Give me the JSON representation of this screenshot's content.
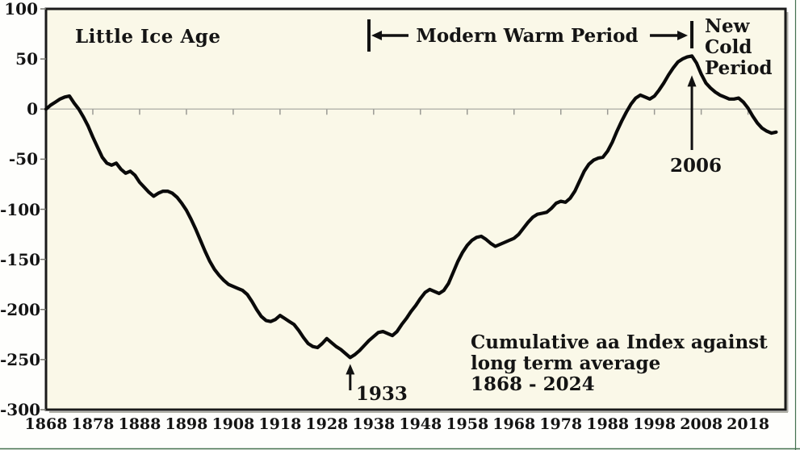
{
  "chart_data": {
    "type": "line",
    "title": "Cumulative aa Index against long term average 1868 - 2024",
    "x_start": 1868,
    "x_end": 2024,
    "ylim": [
      -300,
      100
    ],
    "y_ticks": [
      100,
      50,
      0,
      -50,
      -100,
      -150,
      -200,
      -250,
      -300
    ],
    "x_ticks": [
      1868,
      1878,
      1888,
      1898,
      1908,
      1918,
      1928,
      1938,
      1948,
      1958,
      1968,
      1978,
      1988,
      1998,
      2008,
      2018
    ],
    "grid": "zero-line-only",
    "legend": "none",
    "series": [
      {
        "name": "Cumulative aa Index against long term average",
        "x_start": 1868,
        "values": [
          0,
          4,
          7,
          10,
          12,
          13,
          6,
          0,
          -8,
          -17,
          -28,
          -38,
          -48,
          -54,
          -56,
          -54,
          -60,
          -64,
          -62,
          -66,
          -73,
          -78,
          -83,
          -87,
          -84,
          -82,
          -82,
          -84,
          -88,
          -94,
          -101,
          -110,
          -120,
          -131,
          -142,
          -152,
          -160,
          -166,
          -171,
          -175,
          -177,
          -179,
          -181,
          -185,
          -192,
          -200,
          -207,
          -211,
          -212,
          -210,
          -206,
          -209,
          -212,
          -215,
          -221,
          -228,
          -234,
          -237,
          -238,
          -234,
          -229,
          -233,
          -237,
          -240,
          -244,
          -248,
          -245,
          -241,
          -236,
          -231,
          -227,
          -223,
          -222,
          -224,
          -226,
          -222,
          -215,
          -209,
          -202,
          -196,
          -189,
          -183,
          -180,
          -182,
          -184,
          -181,
          -174,
          -163,
          -152,
          -143,
          -136,
          -131,
          -128,
          -127,
          -130,
          -134,
          -137,
          -135,
          -133,
          -131,
          -129,
          -125,
          -119,
          -113,
          -108,
          -105,
          -104,
          -103,
          -99,
          -94,
          -92,
          -93,
          -89,
          -82,
          -72,
          -62,
          -55,
          -51,
          -49,
          -48,
          -42,
          -33,
          -22,
          -12,
          -3,
          5,
          11,
          14,
          12,
          10,
          13,
          19,
          26,
          34,
          41,
          47,
          50,
          52,
          53,
          46,
          35,
          26,
          21,
          17,
          14,
          12,
          10,
          10,
          11,
          7,
          1,
          -7,
          -14,
          -19,
          -22,
          -24,
          -23
        ]
      }
    ],
    "annotations": {
      "little_ice_age": "Little Ice Age",
      "modern_warm_period": "Modern Warm Period",
      "new_cold_period": "New\nCold\nPeriod",
      "caption": "Cumulative aa Index against\nlong term average\n1868 - 2024",
      "min_point": {
        "label": "1933",
        "year": 1933,
        "value": -248
      },
      "max_point": {
        "label": "2006",
        "year": 2006,
        "value": 53
      },
      "warm_period_span": {
        "start_year": 1937,
        "end_year": 2006
      }
    },
    "colors": {
      "line": "#0a0a0a",
      "plot_bg": "#faf8e8",
      "outer_bg": "#fefefc",
      "zero_line": "#b8b8b0",
      "axis_tick": "#9a9a94",
      "border": "#1a1a1a",
      "shadow": "#b0b0a8",
      "frame_green": "#44714f",
      "text": "#141414"
    }
  }
}
